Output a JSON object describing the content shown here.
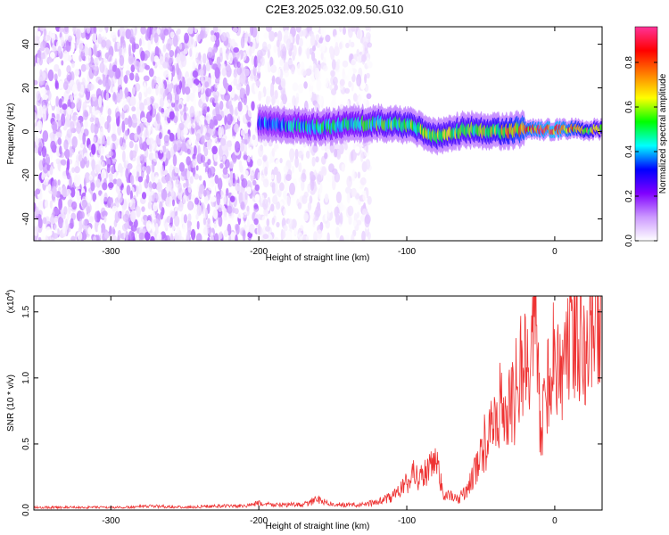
{
  "title": "C2E3.2025.032.09.50.G10",
  "chart_data": [
    {
      "type": "heatmap",
      "xlabel": "Height of straight line (km)",
      "ylabel": "Frequency (Hz)",
      "xlim": [
        -352,
        32
      ],
      "ylim": [
        -50,
        48
      ],
      "xticks": [
        -300,
        -200,
        -100,
        0
      ],
      "yticks": [
        -40,
        -20,
        0,
        20,
        40
      ],
      "colorbar": {
        "label": "Normalized spectral amplitude",
        "range": [
          0,
          0.96
        ],
        "ticks": [
          "0.0",
          "0.2",
          "0.4",
          "0.6",
          "0.8"
        ],
        "tick_values": [
          0,
          0.2,
          0.4,
          0.6,
          0.8
        ],
        "colors": [
          "#ffffff",
          "#cc99ff",
          "#8000ff",
          "#0000ff",
          "#00ffff",
          "#00ff00",
          "#ffff00",
          "#ff8000",
          "#ff0000",
          "#ff3399"
        ]
      },
      "regions": [
        {
          "x_from": -352,
          "x_to": -200,
          "freq_from": -50,
          "freq_to": 48,
          "amplitude": 0.1,
          "note": "dense scattered noise"
        },
        {
          "x_from": -200,
          "x_to": -125,
          "freq_from": -50,
          "freq_to": 48,
          "amplitude": 0.05,
          "note": "sparse scattered noise"
        },
        {
          "x_from": -200,
          "x_to": 32,
          "freq_from": -3,
          "freq_to": 7,
          "amplitude": 0.5,
          "note": "narrow signal band near 0 Hz"
        }
      ],
      "signal_band": {
        "x": [
          -200,
          -180,
          -160,
          -140,
          -120,
          -100,
          -80,
          -60,
          -40,
          -20,
          0,
          20,
          32
        ],
        "center_freq": [
          4,
          3,
          2,
          3,
          4,
          3,
          -2,
          1,
          0,
          1,
          1,
          1,
          1
        ],
        "peak_amplitude": [
          0.4,
          0.45,
          0.5,
          0.5,
          0.55,
          0.6,
          0.6,
          0.6,
          0.65,
          0.8,
          0.9,
          0.7,
          0.6
        ]
      }
    },
    {
      "type": "line",
      "xlabel": "Height of straight line (km)",
      "ylabel": "SNR (10 * v/v)",
      "yscale_label": "(x10",
      "yscale_exp": "4",
      "yscale_close": ")",
      "xlim": [
        -352,
        32
      ],
      "ylim": [
        0,
        1.62
      ],
      "xticks": [
        -300,
        -200,
        -100,
        0
      ],
      "yticks": [
        0.0,
        0.5,
        1.0,
        1.5
      ],
      "ytick_labels": [
        "0.0",
        "0.5",
        "1.0",
        "1.5"
      ],
      "series": [
        {
          "color": "#ee3333",
          "x": [
            -350,
            -330,
            -310,
            -290,
            -270,
            -250,
            -230,
            -210,
            -200,
            -190,
            -170,
            -160,
            -150,
            -130,
            -120,
            -110,
            -105,
            -100,
            -95,
            -90,
            -85,
            -80,
            -75,
            -70,
            -65,
            -60,
            -55,
            -50,
            -45,
            -40,
            -35,
            -30,
            -25,
            -20,
            -15,
            -12,
            -10,
            -5,
            0,
            5,
            10,
            15,
            20,
            25,
            30
          ],
          "y": [
            0.02,
            0.02,
            0.02,
            0.02,
            0.03,
            0.02,
            0.03,
            0.03,
            0.05,
            0.04,
            0.04,
            0.08,
            0.04,
            0.04,
            0.06,
            0.1,
            0.15,
            0.2,
            0.28,
            0.25,
            0.3,
            0.35,
            0.12,
            0.1,
            0.08,
            0.15,
            0.25,
            0.45,
            0.55,
            0.65,
            0.85,
            0.75,
            0.95,
            1.2,
            1.4,
            1.62,
            0.5,
            1.0,
            1.15,
            1.1,
            1.3,
            1.35,
            1.4,
            1.45,
            1.5
          ]
        }
      ]
    }
  ]
}
